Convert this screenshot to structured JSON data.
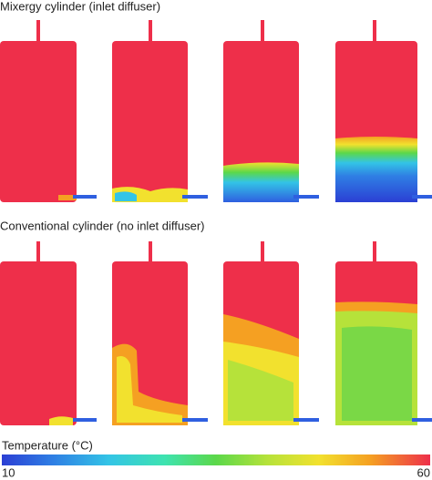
{
  "sections": [
    {
      "title": "Mixergy cylinder (inlet diffuser)"
    },
    {
      "title": "Conventional cylinder (no inlet diffuser)"
    }
  ],
  "colorbar": {
    "label": "Temperature (°C)",
    "min_label": "10",
    "max_label": "60"
  }
}
